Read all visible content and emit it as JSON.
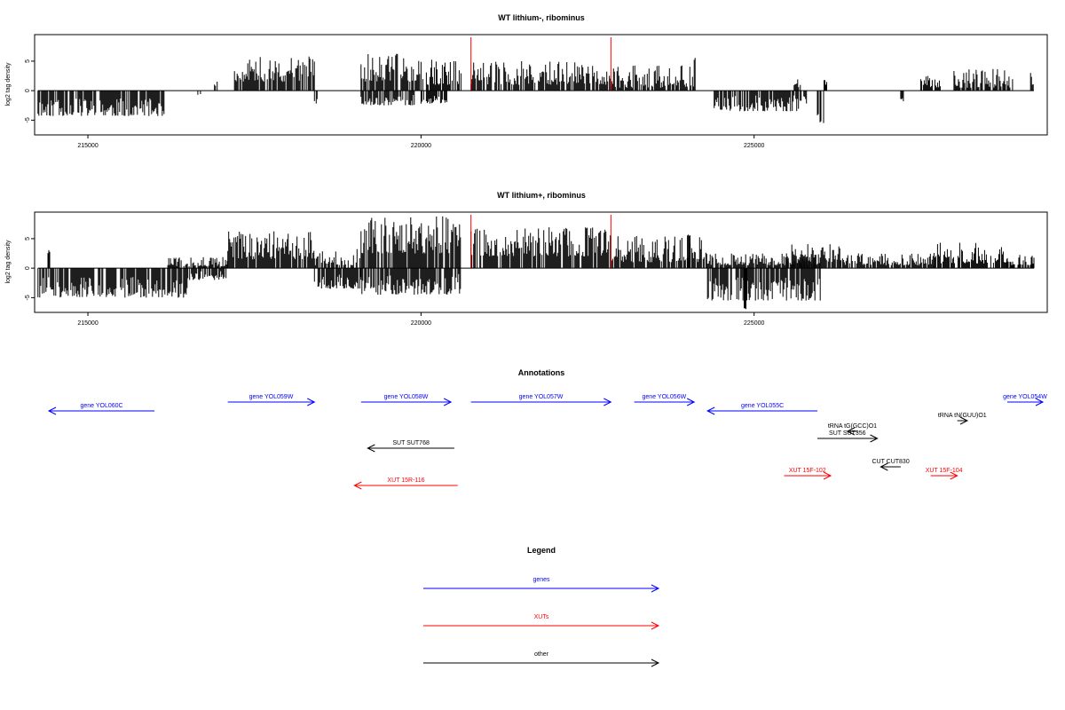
{
  "chart_data": [
    {
      "type": "bar",
      "title": "WT lithium-, ribominus",
      "ylabel": "log2 tag density",
      "xlim": [
        214200,
        229400
      ],
      "ylim": [
        -7.5,
        9.5
      ],
      "x_ticks": [
        215000,
        220000,
        225000
      ],
      "x_tick_labels": [
        "215000",
        "220000",
        "225000"
      ],
      "y_ticks": [
        -5,
        0,
        5
      ],
      "y_tick_labels": [
        "-5",
        "0",
        "5"
      ],
      "marker_lines_x": [
        220750,
        222850
      ],
      "segments": [
        {
          "x0": 214250,
          "x1": 216150,
          "min": -4.3,
          "max": -1.3,
          "sign": -1,
          "seed": 11
        },
        {
          "x0": 216650,
          "x1": 216700,
          "min": -0.8,
          "max": -0.3,
          "sign": -1,
          "seed": 12
        },
        {
          "x0": 216900,
          "x1": 216950,
          "min": 0.8,
          "max": 1.6,
          "sign": 1,
          "seed": 13
        },
        {
          "x0": 217200,
          "x1": 218400,
          "min": 1.5,
          "max": 6.2,
          "sign": 1,
          "seed": 14
        },
        {
          "x0": 218400,
          "x1": 218450,
          "min": -2.5,
          "max": -1.0,
          "sign": -1,
          "seed": 15
        },
        {
          "x0": 219100,
          "x1": 220000,
          "min": 1.5,
          "max": 6.4,
          "sign": 1,
          "seed": 16
        },
        {
          "x0": 219100,
          "x1": 219900,
          "min": -2.5,
          "max": -0.5,
          "sign": -1,
          "seed": 17
        },
        {
          "x0": 220000,
          "x1": 220600,
          "min": 1.0,
          "max": 5.5,
          "sign": 1,
          "seed": 18
        },
        {
          "x0": 220000,
          "x1": 220400,
          "min": -2.2,
          "max": -0.5,
          "sign": -1,
          "seed": 19
        },
        {
          "x0": 220750,
          "x1": 222850,
          "min": 1.0,
          "max": 5.0,
          "sign": 1,
          "seed": 20
        },
        {
          "x0": 222850,
          "x1": 224100,
          "min": 0.5,
          "max": 4.5,
          "sign": 1,
          "seed": 21
        },
        {
          "x0": 224100,
          "x1": 224150,
          "min": 5.0,
          "max": 6.8,
          "sign": 1,
          "seed": 22
        },
        {
          "x0": 224400,
          "x1": 225800,
          "min": -3.5,
          "max": -0.8,
          "sign": -1,
          "seed": 23
        },
        {
          "x0": 225600,
          "x1": 225700,
          "min": 0.5,
          "max": 2.0,
          "sign": 1,
          "seed": 24
        },
        {
          "x0": 225950,
          "x1": 226050,
          "min": -5.5,
          "max": -2.0,
          "sign": -1,
          "seed": 25
        },
        {
          "x0": 226050,
          "x1": 226100,
          "min": 1.0,
          "max": 2.6,
          "sign": 1,
          "seed": 26
        },
        {
          "x0": 227200,
          "x1": 227250,
          "min": -2.0,
          "max": -1.0,
          "sign": -1,
          "seed": 27
        },
        {
          "x0": 227500,
          "x1": 227800,
          "min": 0.5,
          "max": 2.5,
          "sign": 1,
          "seed": 28
        },
        {
          "x0": 228000,
          "x1": 228900,
          "min": 0.5,
          "max": 3.8,
          "sign": 1,
          "seed": 29
        },
        {
          "x0": 229150,
          "x1": 229200,
          "min": 1.0,
          "max": 3.0,
          "sign": 1,
          "seed": 30
        }
      ]
    },
    {
      "type": "bar",
      "title": "WT lithium+, ribominus",
      "ylabel": "log2 tag density",
      "xlim": [
        214200,
        229400
      ],
      "ylim": [
        -7.5,
        9.5
      ],
      "x_ticks": [
        215000,
        220000,
        225000
      ],
      "x_tick_labels": [
        "215000",
        "220000",
        "225000"
      ],
      "y_ticks": [
        -5,
        0,
        5
      ],
      "y_tick_labels": [
        "-5",
        "0",
        "5"
      ],
      "marker_lines_x": [
        220750,
        222850
      ],
      "segments": [
        {
          "x0": 214250,
          "x1": 216500,
          "min": -5.0,
          "max": -1.5,
          "sign": -1,
          "seed": 31
        },
        {
          "x0": 214400,
          "x1": 214450,
          "min": 2.5,
          "max": 3.2,
          "sign": 1,
          "seed": 32
        },
        {
          "x0": 216200,
          "x1": 217100,
          "min": 0.3,
          "max": 2.0,
          "sign": 1,
          "seed": 33
        },
        {
          "x0": 216500,
          "x1": 217100,
          "min": -2.0,
          "max": -0.5,
          "sign": -1,
          "seed": 34
        },
        {
          "x0": 217100,
          "x1": 218400,
          "min": 1.5,
          "max": 6.5,
          "sign": 1,
          "seed": 35
        },
        {
          "x0": 218400,
          "x1": 219100,
          "min": 0.5,
          "max": 3.5,
          "sign": 1,
          "seed": 36
        },
        {
          "x0": 218400,
          "x1": 219100,
          "min": -3.5,
          "max": -1.0,
          "sign": -1,
          "seed": 37
        },
        {
          "x0": 219100,
          "x1": 220600,
          "min": 2.5,
          "max": 8.8,
          "sign": 1,
          "seed": 38
        },
        {
          "x0": 219100,
          "x1": 220600,
          "min": -4.5,
          "max": -1.0,
          "sign": -1,
          "seed": 39
        },
        {
          "x0": 220750,
          "x1": 222850,
          "min": 2.0,
          "max": 7.0,
          "sign": 1,
          "seed": 40
        },
        {
          "x0": 222850,
          "x1": 224300,
          "min": 1.0,
          "max": 5.5,
          "sign": 1,
          "seed": 41
        },
        {
          "x0": 224000,
          "x1": 224050,
          "min": 5.5,
          "max": 7.5,
          "sign": 1,
          "seed": 42
        },
        {
          "x0": 224300,
          "x1": 226000,
          "min": -5.5,
          "max": -1.5,
          "sign": -1,
          "seed": 43
        },
        {
          "x0": 224300,
          "x1": 226000,
          "min": 0.5,
          "max": 2.5,
          "sign": 1,
          "seed": 44
        },
        {
          "x0": 224850,
          "x1": 224900,
          "min": -7.2,
          "max": -5.0,
          "sign": -1,
          "seed": 45
        },
        {
          "x0": 225500,
          "x1": 226300,
          "min": 1.0,
          "max": 4.5,
          "sign": 1,
          "seed": 46
        },
        {
          "x0": 226300,
          "x1": 227700,
          "min": 0.5,
          "max": 2.5,
          "sign": 1,
          "seed": 47
        },
        {
          "x0": 227700,
          "x1": 228800,
          "min": 0.8,
          "max": 4.5,
          "sign": 1,
          "seed": 48
        },
        {
          "x0": 228800,
          "x1": 229200,
          "min": 0.5,
          "max": 2.5,
          "sign": 1,
          "seed": 49
        }
      ]
    }
  ],
  "annotations": {
    "title": "Annotations",
    "features": [
      {
        "label": "gene YOL060C",
        "x0": 216000,
        "x1": 214400,
        "color": "#0000ff",
        "row": 1
      },
      {
        "label": "gene YOL059W",
        "x0": 217100,
        "x1": 218400,
        "color": "#0000ff",
        "row": 0
      },
      {
        "label": "gene YOL058W",
        "x0": 219100,
        "x1": 220450,
        "color": "#0000ff",
        "row": 0
      },
      {
        "label": "gene YOL057W",
        "x0": 220750,
        "x1": 222850,
        "color": "#0000ff",
        "row": 0
      },
      {
        "label": "gene YOL056W",
        "x0": 223200,
        "x1": 224100,
        "color": "#0000ff",
        "row": 0
      },
      {
        "label": "gene YOL055C",
        "x0": 225950,
        "x1": 224300,
        "color": "#0000ff",
        "row": 1
      },
      {
        "label": "gene YOL054W",
        "x0": 228800,
        "x1": 229400,
        "color": "#0000ff",
        "row": 0
      },
      {
        "label": "tRNA tG(GCC)O1",
        "x0": 226550,
        "x1": 226400,
        "color": "#000000",
        "row": 2
      },
      {
        "label": "tRNA tN(GUU)O1",
        "x0": 228050,
        "x1": 228200,
        "color": "#000000",
        "row": 3
      },
      {
        "label": "SUT SUT356",
        "x0": 225950,
        "x1": 226850,
        "color": "#000000",
        "row": 4
      },
      {
        "label": "SUT SUT768",
        "x0": 220500,
        "x1": 219200,
        "color": "#000000",
        "row": 5
      },
      {
        "label": "CUT CUT830",
        "x0": 227200,
        "x1": 226900,
        "color": "#000000",
        "row": 6
      },
      {
        "label": "XUT 15F-102",
        "x0": 225450,
        "x1": 226150,
        "color": "#ff0000",
        "row": 7
      },
      {
        "label": "XUT 15F-104",
        "x0": 227650,
        "x1": 228050,
        "color": "#ff0000",
        "row": 7
      },
      {
        "label": "XUT 15R-116",
        "x0": 220550,
        "x1": 219000,
        "color": "#ff0000",
        "row": 8
      }
    ]
  },
  "legend": {
    "title": "Legend",
    "items": [
      {
        "label": "genes",
        "color": "#0000ff"
      },
      {
        "label": "XUTs",
        "color": "#ff0000"
      },
      {
        "label": "other",
        "color": "#000000"
      }
    ]
  }
}
